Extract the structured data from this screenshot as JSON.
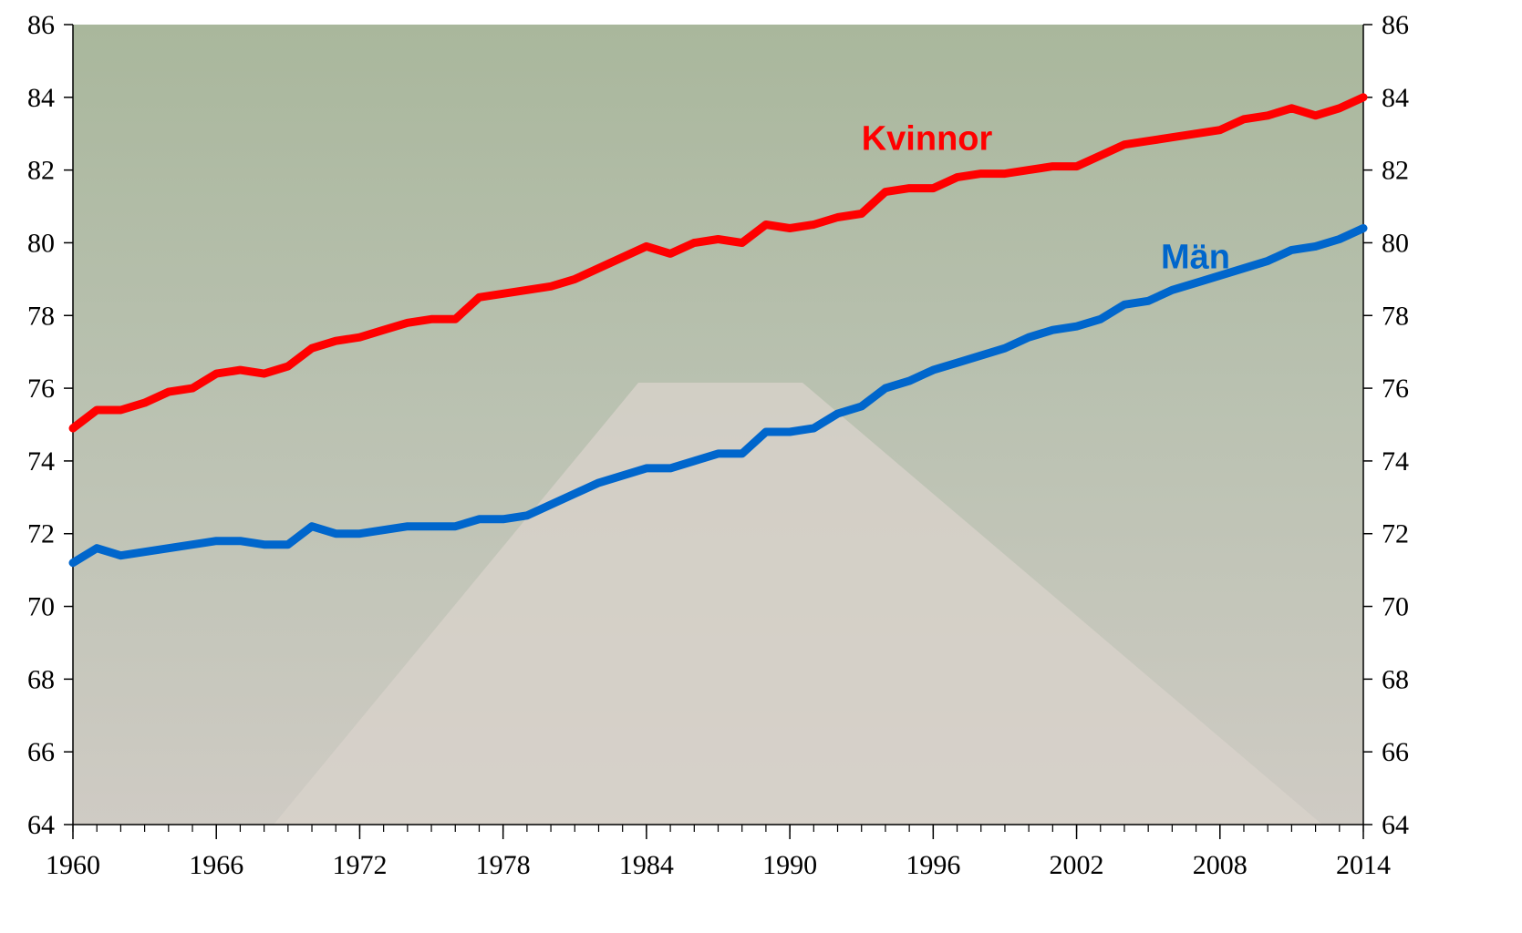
{
  "chart_data": {
    "type": "line",
    "x": [
      1960,
      1961,
      1962,
      1963,
      1964,
      1965,
      1966,
      1967,
      1968,
      1969,
      1970,
      1971,
      1972,
      1973,
      1974,
      1975,
      1976,
      1977,
      1978,
      1979,
      1980,
      1981,
      1982,
      1983,
      1984,
      1985,
      1986,
      1987,
      1988,
      1989,
      1990,
      1991,
      1992,
      1993,
      1994,
      1995,
      1996,
      1997,
      1998,
      1999,
      2000,
      2001,
      2002,
      2003,
      2004,
      2005,
      2006,
      2007,
      2008,
      2009,
      2010,
      2011,
      2012,
      2013,
      2014
    ],
    "series": [
      {
        "name": "Kvinnor",
        "color": "#ff0000",
        "values": [
          74.9,
          75.4,
          75.4,
          75.6,
          75.9,
          76.0,
          76.4,
          76.5,
          76.4,
          76.6,
          77.1,
          77.3,
          77.4,
          77.6,
          77.8,
          77.9,
          77.9,
          78.5,
          78.6,
          78.7,
          78.8,
          79.0,
          79.3,
          79.6,
          79.9,
          79.7,
          80.0,
          80.1,
          80.0,
          80.5,
          80.4,
          80.5,
          80.7,
          80.8,
          81.4,
          81.5,
          81.5,
          81.8,
          81.9,
          81.9,
          82.0,
          82.1,
          82.1,
          82.4,
          82.7,
          82.8,
          82.9,
          83.0,
          83.1,
          83.4,
          83.5,
          83.7,
          83.5,
          83.7,
          84.0
        ]
      },
      {
        "name": "Män",
        "color": "#0066cc",
        "values": [
          71.2,
          71.6,
          71.4,
          71.5,
          71.6,
          71.7,
          71.8,
          71.8,
          71.7,
          71.7,
          72.2,
          72.0,
          72.0,
          72.1,
          72.2,
          72.2,
          72.2,
          72.4,
          72.4,
          72.5,
          72.8,
          73.1,
          73.4,
          73.6,
          73.8,
          73.8,
          74.0,
          74.2,
          74.2,
          74.8,
          74.8,
          74.9,
          75.3,
          75.5,
          76.0,
          76.2,
          76.5,
          76.7,
          76.9,
          77.1,
          77.4,
          77.6,
          77.7,
          77.9,
          78.3,
          78.4,
          78.7,
          78.9,
          79.1,
          79.3,
          79.5,
          79.8,
          79.9,
          80.1,
          80.4
        ]
      }
    ],
    "xlim": [
      1960,
      2014
    ],
    "xticks": [
      1960,
      1966,
      1972,
      1978,
      1984,
      1990,
      1996,
      2002,
      2008,
      2014
    ],
    "ylim": [
      64,
      86
    ],
    "yticks": [
      64,
      66,
      68,
      70,
      72,
      74,
      76,
      78,
      80,
      82,
      84,
      86
    ],
    "y2lim": [
      64,
      86
    ],
    "y2ticks": [
      64,
      66,
      68,
      70,
      72,
      74,
      76,
      78,
      80,
      82,
      84,
      86
    ]
  }
}
